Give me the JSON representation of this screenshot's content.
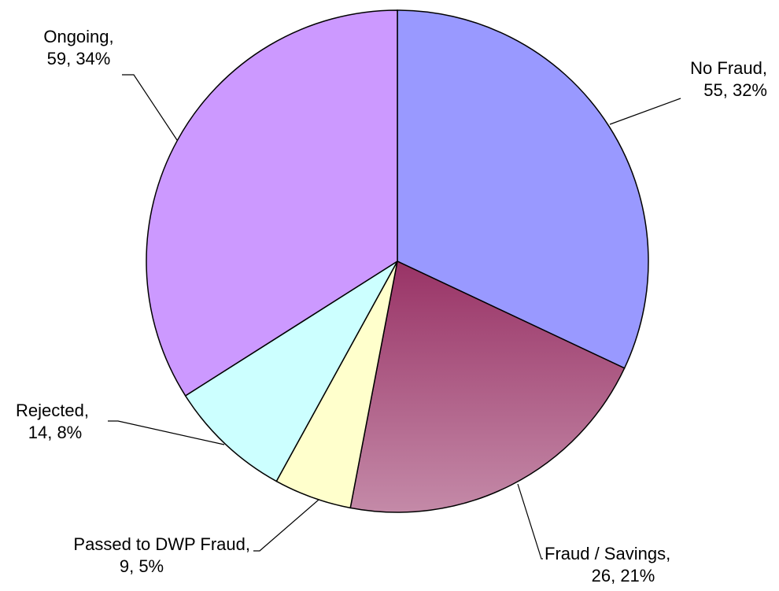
{
  "chart_data": {
    "type": "pie",
    "categories": [
      "No Fraud,",
      "Fraud / Savings,",
      "Passed to DWP Fraud,",
      "Rejected,",
      "Ongoing,"
    ],
    "values": [
      32,
      21,
      5,
      8,
      34
    ],
    "value_labels": [
      "55, 32%",
      "26, 21%",
      "9, 5%",
      "14, 8%",
      "59, 34%"
    ],
    "colors": [
      "#9999ff",
      "#993366",
      "#ffffcc",
      "#ccffff",
      "#cc99ff"
    ]
  }
}
